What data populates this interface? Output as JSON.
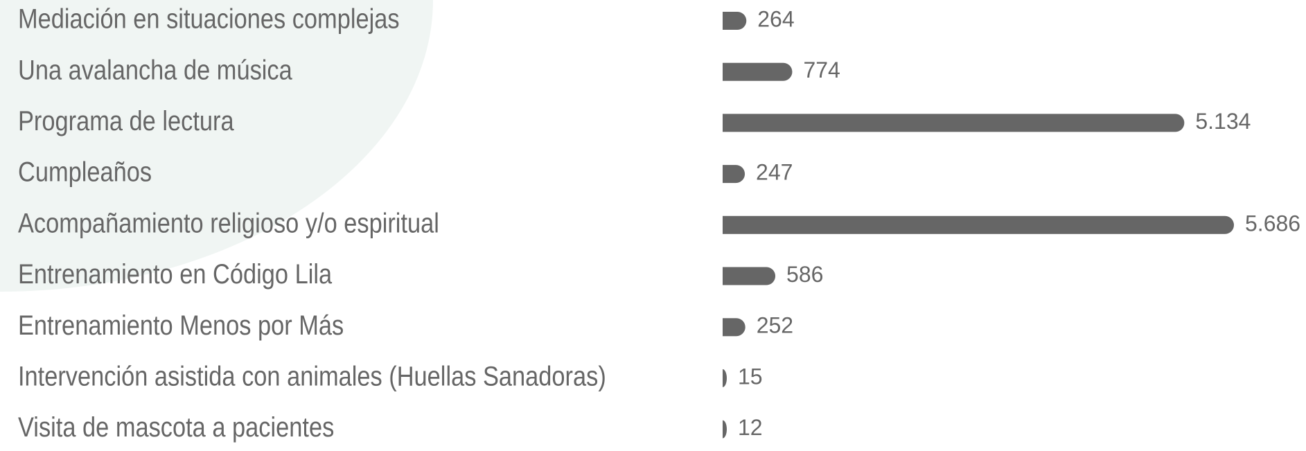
{
  "chart_data": {
    "type": "bar",
    "orientation": "horizontal",
    "categories": [
      "Mediación en situaciones complejas",
      "Una avalancha de música",
      "Programa de lectura",
      "Cumpleaños",
      "Acompañamiento religioso y/o espiritual",
      "Entrenamiento en Código Lila",
      "Entrenamiento Menos por Más",
      "Intervención asistida con animales (Huellas Sanadoras)",
      "Visita de mascota a pacientes"
    ],
    "values": [
      264,
      774,
      5134,
      247,
      5686,
      586,
      252,
      15,
      12
    ],
    "value_labels": [
      "264",
      "774",
      "5.134",
      "247",
      "5.686",
      "586",
      "252",
      "15",
      "12"
    ],
    "color": "#666666"
  }
}
